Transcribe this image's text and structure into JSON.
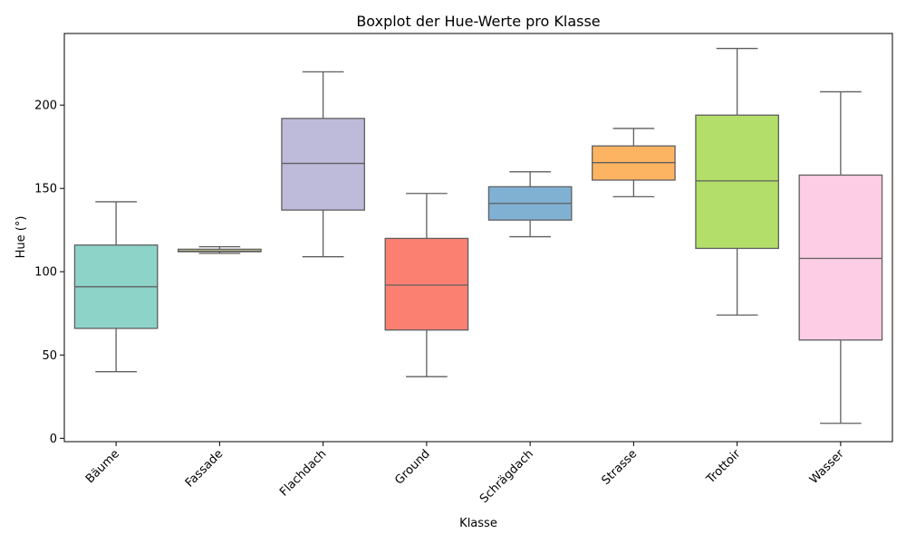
{
  "chart_data": {
    "type": "box",
    "title": "Boxplot der Hue-Werte pro Klasse",
    "xlabel": "Klasse",
    "ylabel": "Hue (°)",
    "ylim": [
      -2,
      243
    ],
    "yticks": [
      0,
      50,
      100,
      150,
      200
    ],
    "grid": false,
    "categories": [
      "Bäume",
      "Fassade",
      "Flachdach",
      "Ground",
      "Schrägdach",
      "Strasse",
      "Trottoir",
      "Wasser"
    ],
    "boxes": [
      {
        "category": "Bäume",
        "whisker_low": 40,
        "q1": 66,
        "median": 91,
        "q3": 116,
        "whisker_high": 142,
        "color": "#8dd3c7"
      },
      {
        "category": "Fassade",
        "whisker_low": 111,
        "q1": 112,
        "median": 112.5,
        "q3": 113.5,
        "whisker_high": 115,
        "color": "#ffffb3"
      },
      {
        "category": "Flachdach",
        "whisker_low": 109,
        "q1": 137,
        "median": 165,
        "q3": 192,
        "whisker_high": 220,
        "color": "#bebada"
      },
      {
        "category": "Ground",
        "whisker_low": 37,
        "q1": 65,
        "median": 92,
        "q3": 120,
        "whisker_high": 147,
        "color": "#fb8072"
      },
      {
        "category": "Schrägdach",
        "whisker_low": 121,
        "q1": 131,
        "median": 141,
        "q3": 151,
        "whisker_high": 160,
        "color": "#80b1d3"
      },
      {
        "category": "Strasse",
        "whisker_low": 145,
        "q1": 155,
        "median": 165.5,
        "q3": 175.5,
        "whisker_high": 186,
        "color": "#fdb462"
      },
      {
        "category": "Trottoir",
        "whisker_low": 74,
        "q1": 114,
        "median": 154.5,
        "q3": 194,
        "whisker_high": 234,
        "color": "#b3de69"
      },
      {
        "category": "Wasser",
        "whisker_low": 9,
        "q1": 59,
        "median": 108,
        "q3": 158,
        "whisker_high": 208,
        "color": "#fccde5"
      }
    ]
  }
}
